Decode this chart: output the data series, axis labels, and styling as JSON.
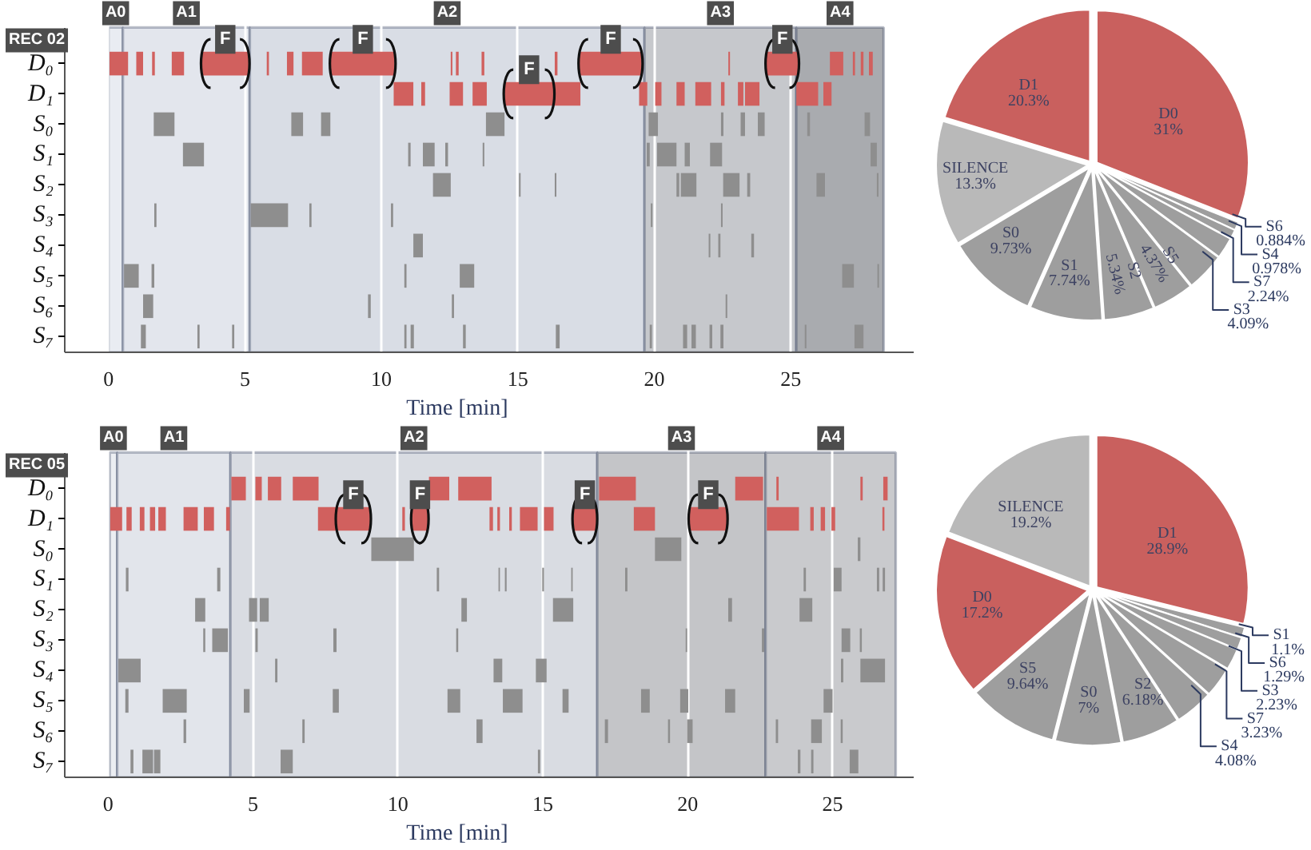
{
  "chart_data": [
    {
      "type": "bar",
      "orientation": "horizontal",
      "title": "REC 02",
      "xlabel": "Time [min]",
      "categories": [
        "D₀",
        "D₁",
        "S₀",
        "S₁",
        "S₂",
        "S₃",
        "S₄",
        "S₅",
        "S₆",
        "S₇"
      ],
      "xlim": [
        -1.6,
        29.5
      ],
      "xticks": [
        0,
        5,
        10,
        15,
        20,
        25
      ],
      "grid": "x",
      "bands": [
        {
          "axis": "x",
          "from": 0,
          "to": 0.53,
          "label": "A0",
          "color": "#e9ecf2"
        },
        {
          "axis": "x",
          "from": 0.53,
          "to": 5.18,
          "label": "A1",
          "color": "#e3e6ed"
        },
        {
          "axis": "x",
          "from": 5.18,
          "to": 19.64,
          "label": "A2",
          "color": "#d9dde5"
        },
        {
          "axis": "x",
          "from": 19.64,
          "to": 25.2,
          "label": "A3",
          "color": "#c6c8cc"
        },
        {
          "axis": "x",
          "from": 25.2,
          "to": 28.4,
          "label": "A4",
          "color": "#a9abaf"
        }
      ],
      "annotations": [
        {
          "text": "F",
          "x": 4.28,
          "y": "D₀"
        },
        {
          "text": "F",
          "x": 9.32,
          "y": "D₀"
        },
        {
          "text": "F",
          "x": 15.41,
          "y": "D₁"
        },
        {
          "text": "F",
          "x": 18.4,
          "y": "D₀"
        },
        {
          "text": "F",
          "x": 24.69,
          "y": "D₀"
        }
      ],
      "series": [
        {
          "colors": [
            "#d1605e",
            "#d1605e",
            "#8e8e8e",
            "#8e8e8e",
            "#8e8e8e",
            "#8e8e8e",
            "#8e8e8e",
            "#8e8e8e",
            "#8e8e8e",
            "#8e8e8e"
          ],
          "base": [
            0.04,
            10.45,
            1.66,
            2.73,
            11.89,
            1.68,
            11.17,
            0.57,
            1.27,
            1.19
          ],
          "values": [
            0.68,
            0.72,
            0.76,
            0.77,
            0.65,
            0.08,
            0.35,
            0.54,
            0.37,
            0.18
          ]
        },
        {
          "colors": [
            "#d1605e",
            "#d1605e",
            "#8e8e8e",
            "#8e8e8e",
            "#8e8e8e",
            "#8e8e8e",
            "#8e8e8e",
            "#8e8e8e",
            "#8e8e8e",
            "#8e8e8e"
          ],
          "base": [
            1.02,
            11.46,
            6.7,
            10.98,
            15.04,
            5.21,
            21.99,
            1.58,
            9.51,
            3.26
          ],
          "values": [
            0.25,
            0.14,
            0.43,
            0.09,
            0.06,
            1.37,
            0.06,
            0.1,
            0.1,
            0.08
          ]
        },
        {
          "colors": [
            "#d1605e",
            "#d1605e",
            "#8e8e8e",
            "#8e8e8e",
            "#8e8e8e",
            "#8e8e8e",
            "#8e8e8e",
            "#8e8e8e",
            "#8e8e8e",
            "#8e8e8e"
          ],
          "base": [
            1.6,
            12.5,
            7.79,
            11.52,
            16.35,
            7.36,
            22.34,
            10.84,
            12.58,
            4.53
          ],
          "values": [
            0.1,
            0.49,
            0.34,
            0.43,
            0.06,
            0.08,
            0.08,
            0.08,
            0.08,
            0.08
          ]
        },
        {
          "colors": [
            "#d1605e",
            "#d1605e",
            "#8e8e8e",
            "#8e8e8e",
            "#8e8e8e",
            "#8e8e8e",
            "#8e8e8e",
            "#8e8e8e",
            "#8e8e8e",
            "#8e8e8e"
          ],
          "base": [
            2.32,
            13.34,
            13.83,
            12.34,
            20.81,
            10.35,
            23.55,
            12.87,
            22.61,
            10.84
          ],
          "values": [
            0.45,
            0.52,
            0.68,
            0.1,
            0.1,
            0.08,
            0.1,
            0.53,
            0.06,
            0.08
          ]
        },
        {
          "colors": [
            "#d1605e",
            "#d1605e",
            "#8e8e8e",
            "#8e8e8e",
            "#8e8e8e",
            "#8e8e8e",
            "#8e8e8e",
            "#8e8e8e",
            "#8e8e8e",
            "#8e8e8e"
          ],
          "base": [
            3.42,
            14.51,
            19.79,
            13.71,
            20.97,
            19.87,
            null,
            26.88,
            null,
            11.07
          ],
          "values": [
            1.72,
            1.8,
            0.34,
            0.06,
            0.57,
            0.06,
            null,
            0.43,
            null,
            0.12
          ]
        },
        {
          "colors": [
            "#d1605e",
            "#d1605e",
            "#8e8e8e",
            "#8e8e8e",
            "#8e8e8e",
            "#8e8e8e",
            "#8e8e8e",
            "#8e8e8e",
            "#8e8e8e",
            "#8e8e8e"
          ],
          "base": [
            5.8,
            16.31,
            22.44,
            19.72,
            22.52,
            22.44,
            null,
            28.17,
            null,
            12.99
          ],
          "values": [
            0.08,
            0.98,
            0.09,
            0.11,
            0.6,
            0.06,
            null,
            0.06,
            null,
            0.1
          ]
        },
        {
          "colors": [
            "#d1605e",
            "#d1605e",
            "#8e8e8e",
            "#8e8e8e",
            "#8e8e8e",
            "#8e8e8e",
            "#8e8e8e",
            "#8e8e8e",
            "#8e8e8e",
            "#8e8e8e"
          ],
          "base": [
            6.54,
            19.44,
            23.16,
            20.1,
            23.4,
            null,
            null,
            null,
            null,
            16.39
          ],
          "values": [
            0.24,
            0.3,
            0.16,
            0.71,
            0.11,
            null,
            null,
            null,
            null,
            0.14
          ]
        },
        {
          "colors": [
            "#d1605e",
            "#d1605e",
            "#8e8e8e",
            "#8e8e8e",
            "#8e8e8e",
            "#8e8e8e",
            "#8e8e8e",
            "#8e8e8e",
            "#8e8e8e",
            "#8e8e8e"
          ],
          "base": [
            7.09,
            20.03,
            23.79,
            21.11,
            25.94,
            null,
            null,
            null,
            null,
            19.83
          ],
          "values": [
            0.76,
            0.23,
            0.25,
            0.19,
            0.31,
            null,
            null,
            null,
            null,
            0.08
          ]
        },
        {
          "colors": [
            "#d1605e",
            "#d1605e",
            "#8e8e8e",
            "#8e8e8e",
            "#8e8e8e",
            "#8e8e8e",
            "#8e8e8e",
            "#8e8e8e",
            "#8e8e8e",
            "#8e8e8e"
          ],
          "base": [
            8.14,
            20.81,
            25.6,
            22.04,
            28.15,
            null,
            null,
            null,
            null,
            21.05
          ],
          "values": [
            2.35,
            0.3,
            0.1,
            0.44,
            0.06,
            null,
            null,
            null,
            null,
            0.15
          ]
        },
        {
          "colors": [
            "#d1605e",
            "#d1605e",
            "#8e8e8e",
            "#8e8e8e",
            "#8e8e8e",
            "#8e8e8e",
            "#8e8e8e",
            "#8e8e8e",
            "#8e8e8e",
            "#8e8e8e"
          ],
          "base": [
            12.54,
            21.5,
            27.7,
            27.92,
            null,
            null,
            null,
            null,
            null,
            21.36
          ],
          "values": [
            0.06,
            0.58,
            0.2,
            0.23,
            null,
            null,
            null,
            null,
            null,
            0.16
          ]
        },
        {
          "colors": [
            "#d1605e",
            "#d1605e",
            "#8e8e8e",
            "#8e8e8e",
            "#8e8e8e",
            "#8e8e8e",
            "#8e8e8e",
            "#8e8e8e",
            "#8e8e8e",
            "#8e8e8e"
          ],
          "base": [
            12.73,
            22.44,
            null,
            null,
            null,
            null,
            null,
            null,
            null,
            22.02
          ],
          "values": [
            0.1,
            0.13,
            null,
            null,
            null,
            null,
            null,
            null,
            null,
            0.1
          ]
        },
        {
          "colors": [
            "#d1605e",
            "#d1605e",
            "#8e8e8e",
            "#8e8e8e",
            "#8e8e8e",
            "#8e8e8e",
            "#8e8e8e",
            "#8e8e8e",
            "#8e8e8e",
            "#8e8e8e"
          ],
          "base": [
            13.67,
            23.06,
            null,
            null,
            null,
            null,
            null,
            null,
            null,
            22.42
          ],
          "values": [
            0.1,
            0.2,
            null,
            null,
            null,
            null,
            null,
            null,
            null,
            0.11
          ]
        },
        {
          "colors": [
            "#d1605e",
            "#d1605e",
            "#8e8e8e",
            "#8e8e8e",
            "#8e8e8e",
            "#8e8e8e",
            "#8e8e8e",
            "#8e8e8e",
            "#8e8e8e",
            "#8e8e8e"
          ],
          "base": [
            16.35,
            23.32,
            null,
            null,
            null,
            null,
            null,
            null,
            null,
            25.51
          ],
          "values": [
            0.1,
            0.53,
            null,
            null,
            null,
            null,
            null,
            null,
            null,
            0.06
          ]
        },
        {
          "colors": [
            "#d1605e",
            "#d1605e",
            "#8e8e8e",
            "#8e8e8e",
            "#8e8e8e",
            "#8e8e8e",
            "#8e8e8e",
            "#8e8e8e",
            "#8e8e8e",
            "#8e8e8e"
          ],
          "base": [
            17.25,
            25.2,
            null,
            null,
            null,
            null,
            null,
            null,
            null,
            27.33
          ],
          "values": [
            2.29,
            0.8,
            null,
            null,
            null,
            null,
            null,
            null,
            null,
            0.33
          ]
        },
        {
          "colors": [
            "#d1605e",
            "#d1605e",
            "#8e8e8e",
            "#8e8e8e",
            "#8e8e8e",
            "#8e8e8e",
            "#8e8e8e",
            "#8e8e8e",
            "#8e8e8e",
            "#8e8e8e"
          ],
          "base": [
            22.71,
            26.19,
            null,
            null,
            null,
            null,
            null,
            null,
            null,
            null
          ],
          "values": [
            0.06,
            0.3,
            null,
            null,
            null,
            null,
            null,
            null,
            null,
            null
          ]
        },
        {
          "colors": [
            "#d1605e",
            "#d1605e",
            "#8e8e8e",
            "#8e8e8e",
            "#8e8e8e",
            "#8e8e8e",
            "#8e8e8e",
            "#8e8e8e",
            "#8e8e8e",
            "#8e8e8e"
          ],
          "base": [
            24.1,
            null,
            null,
            null,
            null,
            null,
            null,
            null,
            null,
            null
          ],
          "values": [
            1.17,
            null,
            null,
            null,
            null,
            null,
            null,
            null,
            null,
            null
          ]
        },
        {
          "colors": [
            "#d1605e",
            "#d1605e",
            "#8e8e8e",
            "#8e8e8e",
            "#8e8e8e",
            "#8e8e8e",
            "#8e8e8e",
            "#8e8e8e",
            "#8e8e8e",
            "#8e8e8e"
          ],
          "base": [
            26.43,
            null,
            null,
            null,
            null,
            null,
            null,
            null,
            null,
            null
          ],
          "values": [
            0.49,
            null,
            null,
            null,
            null,
            null,
            null,
            null,
            null,
            null
          ]
        },
        {
          "colors": [
            "#d1605e",
            "#d1605e",
            "#8e8e8e",
            "#8e8e8e",
            "#8e8e8e",
            "#8e8e8e",
            "#8e8e8e",
            "#8e8e8e",
            "#8e8e8e",
            "#8e8e8e"
          ],
          "base": [
            27.27,
            null,
            null,
            null,
            null,
            null,
            null,
            null,
            null,
            null
          ],
          "values": [
            0.08,
            null,
            null,
            null,
            null,
            null,
            null,
            null,
            null,
            null
          ]
        },
        {
          "colors": [
            "#d1605e",
            "#d1605e",
            "#8e8e8e",
            "#8e8e8e",
            "#8e8e8e",
            "#8e8e8e",
            "#8e8e8e",
            "#8e8e8e",
            "#8e8e8e",
            "#8e8e8e"
          ],
          "base": [
            27.56,
            null,
            null,
            null,
            null,
            null,
            null,
            null,
            null,
            null
          ],
          "values": [
            0.1,
            null,
            null,
            null,
            null,
            null,
            null,
            null,
            null,
            null
          ]
        },
        {
          "colors": [
            "#d1605e",
            "#d1605e",
            "#8e8e8e",
            "#8e8e8e",
            "#8e8e8e",
            "#8e8e8e",
            "#8e8e8e",
            "#8e8e8e",
            "#8e8e8e",
            "#8e8e8e"
          ],
          "base": [
            27.86,
            null,
            null,
            null,
            null,
            null,
            null,
            null,
            null,
            null
          ],
          "values": [
            0.14,
            null,
            null,
            null,
            null,
            null,
            null,
            null,
            null,
            null
          ]
        }
      ]
    },
    {
      "type": "pie",
      "categories": [
        "D0",
        "S6",
        "S4",
        "S7",
        "S3",
        "S5",
        "S2",
        "S1",
        "S0",
        "SILENCE",
        "D1"
      ],
      "values": [
        31,
        0.884,
        0.978,
        2.24,
        4.09,
        4.37,
        5.34,
        7.74,
        9.73,
        13.3,
        20.3
      ],
      "colors": [
        "#c9605e",
        "#9e9e9e",
        "#9e9e9e",
        "#9e9e9e",
        "#9e9e9e",
        "#9e9e9e",
        "#9e9e9e",
        "#9e9e9e",
        "#9e9e9e",
        "#b9b9b9",
        "#c9605e"
      ],
      "value_labels": [
        "31%",
        "0.884%",
        "0.978%",
        "2.24%",
        "4.09%",
        "4.37%",
        "5.34%",
        "7.74%",
        "9.73%",
        "13.3%",
        "20.3%"
      ]
    },
    {
      "type": "bar",
      "orientation": "horizontal",
      "title": "REC 05",
      "xlabel": "Time [min]",
      "categories": [
        "D₀",
        "D₁",
        "S₀",
        "S₁",
        "S₂",
        "S₃",
        "S₄",
        "S₅",
        "S₆",
        "S₇"
      ],
      "xlim": [
        -1.5,
        27.8
      ],
      "xticks": [
        0,
        5,
        10,
        15,
        20,
        25
      ],
      "grid": "x",
      "bands": [
        {
          "axis": "x",
          "from": 0.05,
          "to": 0.31,
          "label": "A0",
          "color": "#eceef2"
        },
        {
          "axis": "x",
          "from": 0.31,
          "to": 4.22,
          "label": "A1",
          "color": "#e2e5eb"
        },
        {
          "axis": "x",
          "from": 4.22,
          "to": 16.88,
          "label": "A2",
          "color": "#d9dce2"
        },
        {
          "axis": "x",
          "from": 16.88,
          "to": 22.69,
          "label": "A3",
          "color": "#c4c5c8"
        },
        {
          "axis": "x",
          "from": 22.69,
          "to": 27.18,
          "label": "A4",
          "color": "#c9cacd"
        }
      ],
      "annotations": [
        {
          "text": "F",
          "x": 8.46,
          "y": "D₁"
        },
        {
          "text": "F",
          "x": 10.76,
          "y": "D₁"
        },
        {
          "text": "F",
          "x": 16.45,
          "y": "D₁"
        },
        {
          "text": "F",
          "x": 20.71,
          "y": "D₁"
        }
      ],
      "series": [
        {
          "colors": [
            "#d1605e",
            "#d1605e",
            "#8e8e8e",
            "#8e8e8e",
            "#8e8e8e",
            "#8e8e8e",
            "#8e8e8e",
            "#8e8e8e",
            "#8e8e8e",
            "#8e8e8e"
          ],
          "base": [
            4.25,
            0.07,
            9.08,
            0.61,
            3.0,
            3.28,
            0.35,
            0.59,
            2.6,
            0.77
          ],
          "values": [
            0.5,
            0.41,
            1.47,
            0.09,
            0.35,
            0.07,
            0.77,
            0.11,
            0.09,
            0.1
          ]
        },
        {
          "colors": [
            "#d1605e",
            "#d1605e",
            "#8e8e8e",
            "#8e8e8e",
            "#8e8e8e",
            "#8e8e8e",
            "#8e8e8e",
            "#8e8e8e",
            "#8e8e8e",
            "#8e8e8e"
          ],
          "base": [
            5.08,
            0.63,
            18.87,
            3.76,
            4.86,
            3.59,
            5.76,
            1.88,
            6.7,
            1.18
          ],
          "values": [
            0.22,
            0.18,
            0.91,
            0.11,
            0.28,
            0.54,
            0.08,
            0.83,
            0.08,
            0.37
          ]
        },
        {
          "colors": [
            "#d1605e",
            "#d1605e",
            "#8e8e8e",
            "#8e8e8e",
            "#8e8e8e",
            "#8e8e8e",
            "#8e8e8e",
            "#8e8e8e",
            "#8e8e8e",
            "#8e8e8e"
          ],
          "base": [
            5.51,
            1.09,
            25.87,
            11.34,
            5.23,
            5.08,
            13.3,
            4.68,
            12.71,
            1.58
          ],
          "values": [
            0.46,
            0.16,
            0.09,
            0.08,
            0.31,
            0.08,
            0.3,
            0.2,
            0.21,
            0.22
          ]
        },
        {
          "colors": [
            "#d1605e",
            "#d1605e",
            "#8e8e8e",
            "#8e8e8e",
            "#8e8e8e",
            "#8e8e8e",
            "#8e8e8e",
            "#8e8e8e",
            "#8e8e8e",
            "#8e8e8e"
          ],
          "base": [
            6.37,
            1.44,
            null,
            13.47,
            12.19,
            7.77,
            14.76,
            7.75,
            17.14,
            5.95
          ],
          "values": [
            0.89,
            0.18,
            null,
            0.05,
            0.19,
            0.11,
            0.37,
            0.21,
            0.11,
            0.42
          ]
        },
        {
          "colors": [
            "#d1605e",
            "#d1605e",
            "#8e8e8e",
            "#8e8e8e",
            "#8e8e8e",
            "#8e8e8e",
            "#8e8e8e",
            "#8e8e8e",
            "#8e8e8e",
            "#8e8e8e"
          ],
          "base": [
            11.07,
            1.73,
            null,
            13.69,
            15.35,
            12.01,
            25.29,
            11.71,
            19.32,
            14.83
          ],
          "values": [
            0.7,
            0.26,
            null,
            0.06,
            0.7,
            0.07,
            0.08,
            0.44,
            0.07,
            0.08
          ]
        },
        {
          "colors": [
            "#d1605e",
            "#d1605e",
            "#8e8e8e",
            "#8e8e8e",
            "#8e8e8e",
            "#8e8e8e",
            "#8e8e8e",
            "#8e8e8e",
            "#8e8e8e",
            "#8e8e8e"
          ],
          "base": [
            12.08,
            2.6,
            null,
            14.98,
            21.4,
            19.93,
            25.96,
            13.62,
            19.98,
            23.8
          ],
          "values": [
            1.15,
            0.49,
            null,
            0.06,
            0.13,
            0.05,
            0.85,
            0.68,
            0.19,
            0.09
          ]
        },
        {
          "colors": [
            "#d1605e",
            "#d1605e",
            "#8e8e8e",
            "#8e8e8e",
            "#8e8e8e",
            "#8e8e8e",
            "#8e8e8e",
            "#8e8e8e",
            "#8e8e8e",
            "#8e8e8e"
          ],
          "base": [
            16.94,
            3.3,
            null,
            15.98,
            23.86,
            22.56,
            null,
            15.68,
            23.04,
            24.26
          ],
          "values": [
            1.27,
            0.35,
            null,
            0.05,
            0.44,
            0.08,
            null,
            0.21,
            0.08,
            0.08
          ]
        },
        {
          "colors": [
            "#d1605e",
            "#d1605e",
            "#8e8e8e",
            "#8e8e8e",
            "#8e8e8e",
            "#8e8e8e",
            "#8e8e8e",
            "#8e8e8e",
            "#8e8e8e",
            "#8e8e8e"
          ],
          "base": [
            21.64,
            4.07,
            null,
            17.84,
            null,
            25.31,
            null,
            18.39,
            24.26,
            25.59
          ],
          "values": [
            0.96,
            0.13,
            null,
            0.08,
            null,
            0.3,
            null,
            0.3,
            0.37,
            0.3
          ]
        },
        {
          "colors": [
            "#d1605e",
            "#d1605e",
            "#8e8e8e",
            "#8e8e8e",
            "#8e8e8e",
            "#8e8e8e",
            "#8e8e8e",
            "#8e8e8e",
            "#8e8e8e",
            "#8e8e8e"
          ],
          "base": [
            23.06,
            7.24,
            null,
            24.0,
            null,
            25.94,
            null,
            19.74,
            25.28,
            null
          ],
          "values": [
            0.08,
            0.64,
            null,
            0.08,
            null,
            0.07,
            null,
            0.28,
            0.07,
            null
          ]
        },
        {
          "colors": [
            "#d1605e",
            "#d1605e",
            "#8e8e8e",
            "#8e8e8e",
            "#8e8e8e",
            "#8e8e8e",
            "#8e8e8e",
            "#8e8e8e",
            "#8e8e8e",
            "#8e8e8e"
          ],
          "base": [
            25.96,
            7.88,
            null,
            25.04,
            null,
            null,
            null,
            21.29,
            null,
            null
          ],
          "values": [
            0.08,
            1.16,
            null,
            0.27,
            null,
            null,
            null,
            0.35,
            null,
            null
          ]
        },
        {
          "colors": [
            "#d1605e",
            "#d1605e",
            "#8e8e8e",
            "#8e8e8e",
            "#8e8e8e",
            "#8e8e8e",
            "#8e8e8e",
            "#8e8e8e",
            "#8e8e8e",
            "#8e8e8e"
          ],
          "base": [
            26.75,
            10.15,
            null,
            26.53,
            null,
            null,
            null,
            24.69,
            null,
            null
          ],
          "values": [
            0.15,
            0.09,
            null,
            0.08,
            null,
            null,
            null,
            0.31,
            null,
            null
          ]
        },
        {
          "colors": [
            "#d1605e",
            "#d1605e",
            "#8e8e8e",
            "#8e8e8e",
            "#8e8e8e",
            "#8e8e8e",
            "#8e8e8e",
            "#8e8e8e",
            "#8e8e8e",
            "#8e8e8e"
          ],
          "base": [
            null,
            10.48,
            null,
            26.73,
            null,
            null,
            null,
            null,
            null,
            null
          ],
          "values": [
            null,
            0.55,
            null,
            0.08,
            null,
            null,
            null,
            null,
            null,
            null
          ]
        },
        {
          "colors": [
            "#d1605e",
            "#d1605e",
            "#8e8e8e",
            "#8e8e8e",
            "#8e8e8e",
            "#8e8e8e",
            "#8e8e8e",
            "#8e8e8e",
            "#8e8e8e",
            "#8e8e8e"
          ],
          "base": [
            null,
            13.16,
            null,
            null,
            null,
            null,
            null,
            null,
            null,
            null
          ],
          "values": [
            null,
            0.12,
            null,
            null,
            null,
            null,
            null,
            null,
            null,
            null
          ]
        },
        {
          "colors": [
            "#d1605e",
            "#d1605e",
            "#8e8e8e",
            "#8e8e8e",
            "#8e8e8e",
            "#8e8e8e",
            "#8e8e8e",
            "#8e8e8e",
            "#8e8e8e",
            "#8e8e8e"
          ],
          "base": [
            null,
            13.43,
            null,
            null,
            null,
            null,
            null,
            null,
            null,
            null
          ],
          "values": [
            null,
            0.09,
            null,
            null,
            null,
            null,
            null,
            null,
            null,
            null
          ]
        },
        {
          "colors": [
            "#d1605e",
            "#d1605e",
            "#8e8e8e",
            "#8e8e8e",
            "#8e8e8e",
            "#8e8e8e",
            "#8e8e8e",
            "#8e8e8e",
            "#8e8e8e",
            "#8e8e8e"
          ],
          "base": [
            null,
            13.84,
            null,
            null,
            null,
            null,
            null,
            null,
            null,
            null
          ],
          "values": [
            null,
            0.09,
            null,
            null,
            null,
            null,
            null,
            null,
            null,
            null
          ]
        },
        {
          "colors": [
            "#d1605e",
            "#d1605e",
            "#8e8e8e",
            "#8e8e8e",
            "#8e8e8e",
            "#8e8e8e",
            "#8e8e8e",
            "#8e8e8e",
            "#8e8e8e",
            "#8e8e8e"
          ],
          "base": [
            null,
            14.21,
            null,
            null,
            null,
            null,
            null,
            null,
            null,
            null
          ],
          "values": [
            null,
            0.61,
            null,
            null,
            null,
            null,
            null,
            null,
            null,
            null
          ]
        },
        {
          "colors": [
            "#d1605e",
            "#d1605e",
            "#8e8e8e",
            "#8e8e8e",
            "#8e8e8e",
            "#8e8e8e",
            "#8e8e8e",
            "#8e8e8e",
            "#8e8e8e",
            "#8e8e8e"
          ],
          "base": [
            null,
            15.04,
            null,
            null,
            null,
            null,
            null,
            null,
            null,
            null
          ],
          "values": [
            null,
            0.33,
            null,
            null,
            null,
            null,
            null,
            null,
            null,
            null
          ]
        },
        {
          "colors": [
            "#d1605e",
            "#d1605e",
            "#8e8e8e",
            "#8e8e8e",
            "#8e8e8e",
            "#8e8e8e",
            "#8e8e8e",
            "#8e8e8e",
            "#8e8e8e",
            "#8e8e8e"
          ],
          "base": [
            null,
            16.05,
            null,
            null,
            null,
            null,
            null,
            null,
            null,
            null
          ],
          "values": [
            null,
            0.8,
            null,
            null,
            null,
            null,
            null,
            null,
            null,
            null
          ]
        },
        {
          "colors": [
            "#d1605e",
            "#d1605e",
            "#8e8e8e",
            "#8e8e8e",
            "#8e8e8e",
            "#8e8e8e",
            "#8e8e8e",
            "#8e8e8e",
            "#8e8e8e",
            "#8e8e8e"
          ],
          "base": [
            null,
            18.14,
            null,
            null,
            null,
            null,
            null,
            null,
            null,
            null
          ],
          "values": [
            null,
            0.73,
            null,
            null,
            null,
            null,
            null,
            null,
            null,
            null
          ]
        },
        {
          "colors": [
            "#d1605e",
            "#d1605e",
            "#8e8e8e",
            "#8e8e8e",
            "#8e8e8e",
            "#8e8e8e",
            "#8e8e8e",
            "#8e8e8e",
            "#8e8e8e",
            "#8e8e8e"
          ],
          "base": [
            null,
            20.06,
            null,
            null,
            null,
            null,
            null,
            null,
            null,
            null
          ],
          "values": [
            null,
            1.29,
            null,
            null,
            null,
            null,
            null,
            null,
            null,
            null
          ]
        },
        {
          "colors": [
            "#d1605e",
            "#d1605e",
            "#8e8e8e",
            "#8e8e8e",
            "#8e8e8e",
            "#8e8e8e",
            "#8e8e8e",
            "#8e8e8e",
            "#8e8e8e",
            "#8e8e8e"
          ],
          "base": [
            null,
            22.73,
            null,
            null,
            null,
            null,
            null,
            null,
            null,
            null
          ],
          "values": [
            null,
            1.11,
            null,
            null,
            null,
            null,
            null,
            null,
            null,
            null
          ]
        },
        {
          "colors": [
            "#d1605e",
            "#d1605e",
            "#8e8e8e",
            "#8e8e8e",
            "#8e8e8e",
            "#8e8e8e",
            "#8e8e8e",
            "#8e8e8e",
            "#8e8e8e",
            "#8e8e8e"
          ],
          "base": [
            null,
            24.23,
            null,
            null,
            null,
            null,
            null,
            null,
            null,
            null
          ],
          "values": [
            null,
            0.12,
            null,
            null,
            null,
            null,
            null,
            null,
            null,
            null
          ]
        },
        {
          "colors": [
            "#d1605e",
            "#d1605e",
            "#8e8e8e",
            "#8e8e8e",
            "#8e8e8e",
            "#8e8e8e",
            "#8e8e8e",
            "#8e8e8e",
            "#8e8e8e",
            "#8e8e8e"
          ],
          "base": [
            null,
            24.59,
            null,
            null,
            null,
            null,
            null,
            null,
            null,
            null
          ],
          "values": [
            null,
            0.15,
            null,
            null,
            null,
            null,
            null,
            null,
            null,
            null
          ]
        },
        {
          "colors": [
            "#d1605e",
            "#d1605e",
            "#8e8e8e",
            "#8e8e8e",
            "#8e8e8e",
            "#8e8e8e",
            "#8e8e8e",
            "#8e8e8e",
            "#8e8e8e",
            "#8e8e8e"
          ],
          "base": [
            null,
            24.96,
            null,
            null,
            null,
            null,
            null,
            null,
            null,
            null
          ],
          "values": [
            null,
            0.13,
            null,
            null,
            null,
            null,
            null,
            null,
            null,
            null
          ]
        },
        {
          "colors": [
            "#d1605e",
            "#d1605e",
            "#8e8e8e",
            "#8e8e8e",
            "#8e8e8e",
            "#8e8e8e",
            "#8e8e8e",
            "#8e8e8e",
            "#8e8e8e",
            "#8e8e8e"
          ],
          "base": [
            null,
            26.72,
            null,
            null,
            null,
            null,
            null,
            null,
            null,
            null
          ],
          "values": [
            null,
            0.07,
            null,
            null,
            null,
            null,
            null,
            null,
            null,
            null
          ]
        }
      ]
    },
    {
      "type": "pie",
      "categories": [
        "D1",
        "S1",
        "S6",
        "S3",
        "S7",
        "S4",
        "S2",
        "S0",
        "S5",
        "D0",
        "SILENCE"
      ],
      "values": [
        28.9,
        1.1,
        1.29,
        2.23,
        3.23,
        4.08,
        6.18,
        7,
        9.64,
        17.2,
        19.2
      ],
      "colors": [
        "#c9605e",
        "#9e9e9e",
        "#9e9e9e",
        "#9e9e9e",
        "#9e9e9e",
        "#9e9e9e",
        "#9e9e9e",
        "#9e9e9e",
        "#9e9e9e",
        "#c9605e",
        "#b9b9b9"
      ],
      "value_labels": [
        "28.9%",
        "1.1%",
        "1.29%",
        "2.23%",
        "3.23%",
        "4.08%",
        "6.18%",
        "7%",
        "9.64%",
        "17.2%",
        "19.2%"
      ]
    }
  ]
}
